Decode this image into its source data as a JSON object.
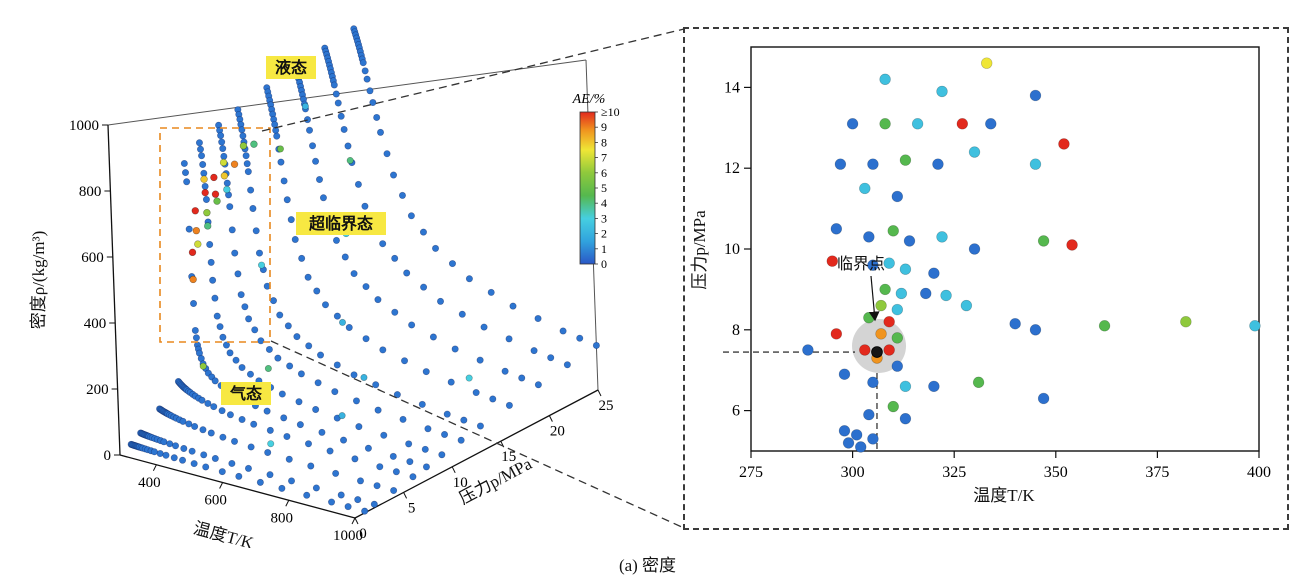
{
  "caption": "(a) 密度",
  "colorbar": {
    "title": "AE/%",
    "tick_labels": [
      "≥10",
      "9",
      "8",
      "7",
      "6",
      "5",
      "4",
      "3",
      "2",
      "1",
      "0"
    ]
  },
  "colormap_stops": [
    [
      0,
      "#2a57c6"
    ],
    [
      1.5,
      "#31a3de"
    ],
    [
      3,
      "#46cfe0"
    ],
    [
      4.5,
      "#55b84e"
    ],
    [
      6,
      "#8fc93c"
    ],
    [
      7.5,
      "#efe636"
    ],
    [
      8.8,
      "#f0941f"
    ],
    [
      10,
      "#e2291d"
    ]
  ],
  "plot3d": {
    "zlabel": "密度ρ/(kg/m³)",
    "xlabel": "温度T/K",
    "ylabel": "压力p/MPa",
    "x_ticks": [
      400,
      600,
      800,
      1000
    ],
    "y_ticks": [
      0,
      5,
      10,
      15,
      20,
      25
    ],
    "z_ticks": [
      0,
      200,
      400,
      600,
      800,
      1000
    ],
    "labels": {
      "liquid": "液态",
      "supercritical": "超临界态",
      "gas": "气态"
    },
    "highlight_bg": "#f7e842",
    "box_color": "#e8881e"
  },
  "plot2d": {
    "xlabel": "温度T/K",
    "ylabel": "压力p/MPa",
    "x_ticks": [
      275,
      300,
      325,
      350,
      375,
      400
    ],
    "y_ticks": [
      6,
      8,
      10,
      12,
      14
    ],
    "annotation": "临界点"
  },
  "chart_data": [
    {
      "type": "scatter",
      "projection": "3d",
      "xlabel": "温度T/K",
      "ylabel": "压力p/MPa",
      "zlabel": "密度ρ/(kg/m³)",
      "xlim": [
        290,
        1000
      ],
      "ylim": [
        0,
        25
      ],
      "zlim": [
        0,
        1000
      ],
      "color_scale": {
        "label": "AE/%",
        "range": [
          0,
          10
        ]
      },
      "annotations": [
        "液态",
        "超临界态",
        "气态"
      ],
      "T_samples": [
        295,
        300,
        305,
        310,
        315,
        320,
        330,
        345,
        365,
        400,
        450,
        520,
        620,
        750,
        900,
        1000
      ],
      "isobars": [
        {
          "p": 1,
          "rho": [
            18,
            17.6,
            17.3,
            17,
            16.7,
            16.5,
            16,
            15.3,
            14.4,
            13.2,
            11.7,
            10.1,
            8.5,
            7,
            5.9,
            5.3
          ]
        },
        {
          "p": 2,
          "rho": [
            37,
            36,
            35.2,
            34.6,
            34,
            33.4,
            32.3,
            30.9,
            29.1,
            26.5,
            23.5,
            20.3,
            17,
            14.1,
            11.8,
            10.6
          ]
        },
        {
          "p": 4,
          "rho": [
            79,
            77,
            75,
            73.4,
            71.8,
            70.3,
            67.5,
            64,
            60,
            54,
            47.6,
            41,
            34.2,
            28.3,
            23.6,
            21.2
          ]
        },
        {
          "p": 6,
          "rho": [
            131,
            126,
            122,
            118,
            115,
            112,
            107,
            100,
            93,
            83,
            72,
            62,
            51.6,
            42.6,
            35.5,
            31.9
          ]
        },
        {
          "p": 7.4,
          "rho": [
            770,
            716,
            430,
            268,
            225,
            202,
            172,
            148,
            130,
            111,
            94,
            80,
            66,
            54,
            45,
            40
          ]
        },
        {
          "p": 9,
          "rho": [
            808,
            770,
            718,
            640,
            505,
            398,
            292,
            232,
            190,
            155,
            128,
            107,
            87,
            70,
            58,
            52
          ]
        },
        {
          "p": 11,
          "rho": [
            830,
            800,
            762,
            716,
            660,
            590,
            452,
            330,
            262,
            205,
            166,
            137,
            110,
            89,
            73,
            65
          ]
        },
        {
          "p": 13,
          "rho": [
            846,
            818,
            788,
            752,
            712,
            665,
            556,
            425,
            330,
            252,
            200,
            163,
            130,
            105,
            86,
            77
          ]
        },
        {
          "p": 16,
          "rho": [
            866,
            842,
            817,
            790,
            760,
            726,
            650,
            540,
            425,
            320,
            250,
            200,
            159,
            128,
            105,
            93
          ]
        },
        {
          "p": 19,
          "rho": [
            881,
            860,
            838,
            815,
            790,
            762,
            700,
            610,
            505,
            385,
            298,
            238,
            188,
            150,
            123,
            109
          ]
        },
        {
          "p": 22,
          "rho": [
            893,
            875,
            855,
            834,
            812,
            788,
            736,
            660,
            565,
            442,
            342,
            272,
            213,
            170,
            139,
            123
          ]
        },
        {
          "p": 25,
          "rho": [
            905,
            888,
            870,
            851,
            830,
            809,
            762,
            695,
            610,
            490,
            380,
            300,
            235,
            187,
            152,
            135
          ]
        }
      ],
      "near_critical_points": [
        [
          305,
          8,
          620,
          10
        ],
        [
          306,
          8,
          560,
          9
        ],
        [
          307,
          9,
          660,
          10
        ],
        [
          305,
          9,
          700,
          8
        ],
        [
          308,
          10,
          640,
          10
        ],
        [
          306,
          11,
          720,
          7
        ],
        [
          309,
          12,
          700,
          9
        ],
        [
          304,
          7.6,
          500,
          10
        ],
        [
          306,
          7.5,
          420,
          9
        ],
        [
          310,
          9,
          600,
          6
        ],
        [
          312,
          10,
          620,
          5
        ],
        [
          308,
          13,
          740,
          6
        ],
        [
          310,
          14,
          730,
          4
        ],
        [
          305,
          10,
          690,
          10
        ],
        [
          307,
          11,
          680,
          8
        ],
        [
          309,
          8,
          520,
          7
        ],
        [
          311,
          9,
          560,
          4
        ],
        [
          313,
          11,
          640,
          3
        ]
      ],
      "extra_points": [
        [
          600,
          5,
          40,
          3
        ],
        [
          450,
          10,
          150,
          4
        ],
        [
          350,
          13,
          390,
          3
        ],
        [
          330,
          16,
          690,
          5
        ],
        [
          500,
          16,
          210,
          2
        ],
        [
          700,
          9,
          90,
          2
        ],
        [
          400,
          20,
          390,
          3
        ],
        [
          360,
          22,
          570,
          4
        ],
        [
          330,
          7.4,
          165,
          6
        ],
        [
          650,
          13,
          130,
          2
        ],
        [
          850,
          17,
          120,
          3
        ],
        [
          320,
          19,
          770,
          2
        ]
      ]
    },
    {
      "type": "scatter",
      "title": "near-critical region zoom",
      "xlabel": "温度T/K",
      "ylabel": "压力p/MPa",
      "xlim": [
        275,
        400
      ],
      "ylim": [
        5,
        15
      ],
      "color_scale": {
        "label": "AE/%",
        "range": [
          0,
          10
        ]
      },
      "critical_point": {
        "T": 306,
        "p": 7.45,
        "label": "临界点"
      },
      "points": [
        [
          308,
          14.2,
          2.5
        ],
        [
          333,
          14.6,
          7.5
        ],
        [
          322,
          13.9,
          2.5
        ],
        [
          345,
          13.8,
          0.5
        ],
        [
          300,
          13.1,
          0.5
        ],
        [
          308,
          13.1,
          4.5
        ],
        [
          316,
          13.1,
          2.5
        ],
        [
          327,
          13.1,
          10
        ],
        [
          334,
          13.1,
          0.5
        ],
        [
          352,
          12.6,
          10
        ],
        [
          330,
          12.4,
          2.5
        ],
        [
          297,
          12.1,
          0.5
        ],
        [
          305,
          12.1,
          0.5
        ],
        [
          313,
          12.2,
          4.5
        ],
        [
          321,
          12.1,
          0.5
        ],
        [
          345,
          12.1,
          2.5
        ],
        [
          303,
          11.5,
          2.5
        ],
        [
          311,
          11.3,
          0.5
        ],
        [
          296,
          10.5,
          0.5
        ],
        [
          304,
          10.3,
          0.5
        ],
        [
          310,
          10.45,
          4.5
        ],
        [
          314,
          10.2,
          0.5
        ],
        [
          322,
          10.3,
          2.5
        ],
        [
          330,
          10.0,
          0.5
        ],
        [
          347,
          10.2,
          4.5
        ],
        [
          354,
          10.1,
          10
        ],
        [
          295,
          9.7,
          10
        ],
        [
          305,
          9.6,
          0.5
        ],
        [
          309,
          9.65,
          2.5
        ],
        [
          313,
          9.5,
          2.5
        ],
        [
          320,
          9.4,
          0.5
        ],
        [
          308,
          9.0,
          4.5
        ],
        [
          312,
          8.9,
          2.5
        ],
        [
          318,
          8.9,
          0.5
        ],
        [
          323,
          8.85,
          2.5
        ],
        [
          307,
          8.6,
          6
        ],
        [
          311,
          8.5,
          2.5
        ],
        [
          328,
          8.6,
          2.5
        ],
        [
          304,
          8.3,
          4.5
        ],
        [
          309,
          8.2,
          10
        ],
        [
          340,
          8.15,
          0.5
        ],
        [
          345,
          8.0,
          0.5
        ],
        [
          362,
          8.1,
          4.5
        ],
        [
          382,
          8.2,
          6
        ],
        [
          399,
          8.1,
          2.5
        ],
        [
          296,
          7.9,
          10
        ],
        [
          307,
          7.9,
          8.8
        ],
        [
          311,
          7.8,
          4.5
        ],
        [
          289,
          7.5,
          0.5
        ],
        [
          303,
          7.5,
          10
        ],
        [
          309,
          7.5,
          10
        ],
        [
          306,
          7.3,
          8.8
        ],
        [
          311,
          7.1,
          0.5
        ],
        [
          298,
          6.9,
          0.5
        ],
        [
          305,
          6.7,
          0.5
        ],
        [
          313,
          6.6,
          2.5
        ],
        [
          320,
          6.6,
          0.5
        ],
        [
          331,
          6.7,
          4.5
        ],
        [
          347,
          6.3,
          0.5
        ],
        [
          310,
          6.1,
          4.5
        ],
        [
          304,
          5.9,
          0.5
        ],
        [
          313,
          5.8,
          0.5
        ],
        [
          298,
          5.5,
          0.5
        ],
        [
          301,
          5.4,
          0.5
        ],
        [
          299,
          5.2,
          0.5
        ],
        [
          302,
          5.1,
          0.5
        ],
        [
          305,
          5.3,
          0.5
        ]
      ]
    }
  ]
}
